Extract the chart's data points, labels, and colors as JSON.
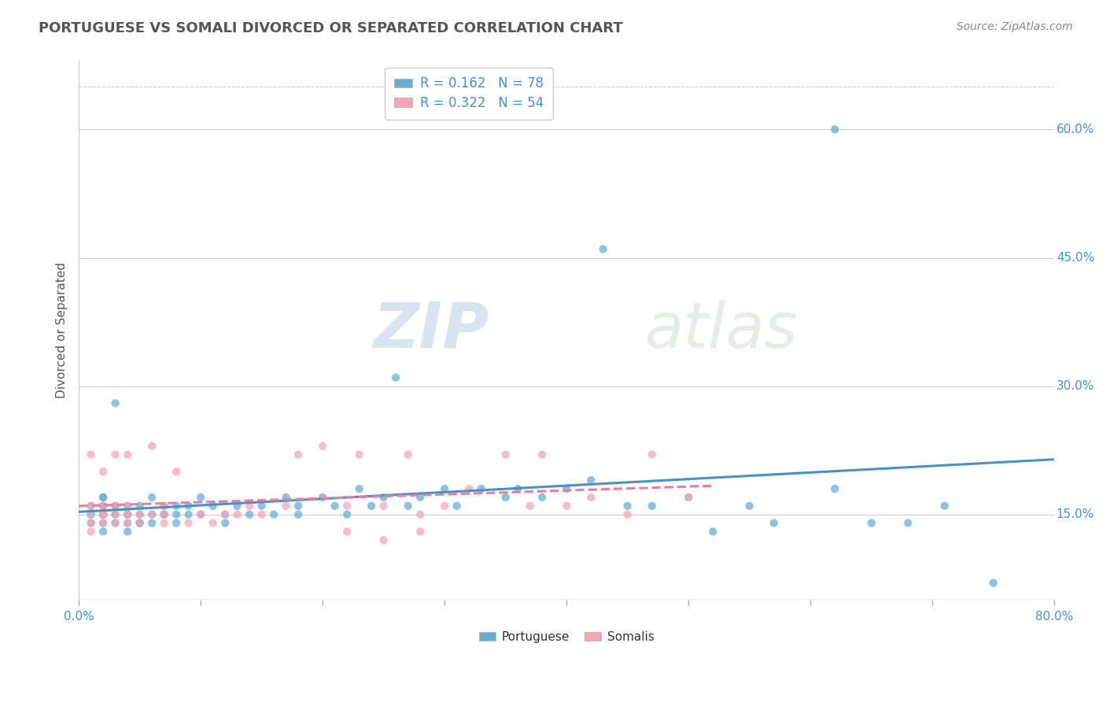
{
  "title": "PORTUGUESE VS SOMALI DIVORCED OR SEPARATED CORRELATION CHART",
  "source": "Source: ZipAtlas.com",
  "ylabel": "Divorced or Separated",
  "xlim": [
    0.0,
    0.8
  ],
  "ylim": [
    0.05,
    0.68
  ],
  "y_tick_vals": [
    0.15,
    0.3,
    0.45,
    0.6
  ],
  "y_tick_labels": [
    "15.0%",
    "30.0%",
    "45.0%",
    "60.0%"
  ],
  "watermark_zip": "ZIP",
  "watermark_atlas": "atlas",
  "legend_r1": "R = 0.162   N = 78",
  "legend_r2": "R = 0.322   N = 54",
  "blue_color": "#6aaed6",
  "pink_color": "#f4a6b8",
  "blue_line_color": "#4a90c4",
  "pink_line_color": "#e87fa0",
  "background_color": "#ffffff",
  "grid_color": "#cccccc",
  "portuguese_x": [
    0.01,
    0.01,
    0.01,
    0.02,
    0.02,
    0.02,
    0.02,
    0.02,
    0.02,
    0.02,
    0.02,
    0.02,
    0.03,
    0.03,
    0.03,
    0.03,
    0.03,
    0.04,
    0.04,
    0.04,
    0.04,
    0.04,
    0.05,
    0.05,
    0.05,
    0.05,
    0.06,
    0.06,
    0.06,
    0.07,
    0.07,
    0.07,
    0.08,
    0.08,
    0.08,
    0.09,
    0.09,
    0.1,
    0.1,
    0.11,
    0.12,
    0.12,
    0.13,
    0.14,
    0.15,
    0.16,
    0.17,
    0.18,
    0.18,
    0.2,
    0.21,
    0.22,
    0.23,
    0.24,
    0.25,
    0.26,
    0.27,
    0.28,
    0.3,
    0.31,
    0.33,
    0.35,
    0.36,
    0.38,
    0.4,
    0.42,
    0.43,
    0.45,
    0.47,
    0.5,
    0.52,
    0.55,
    0.57,
    0.62,
    0.65,
    0.68,
    0.71,
    0.75
  ],
  "portuguese_y": [
    0.15,
    0.16,
    0.14,
    0.15,
    0.17,
    0.16,
    0.14,
    0.15,
    0.16,
    0.13,
    0.17,
    0.15,
    0.15,
    0.16,
    0.14,
    0.28,
    0.16,
    0.15,
    0.14,
    0.16,
    0.15,
    0.13,
    0.14,
    0.15,
    0.16,
    0.14,
    0.17,
    0.15,
    0.14,
    0.15,
    0.16,
    0.15,
    0.16,
    0.14,
    0.15,
    0.16,
    0.15,
    0.17,
    0.15,
    0.16,
    0.15,
    0.14,
    0.16,
    0.15,
    0.16,
    0.15,
    0.17,
    0.16,
    0.15,
    0.17,
    0.16,
    0.15,
    0.18,
    0.16,
    0.17,
    0.31,
    0.16,
    0.17,
    0.18,
    0.16,
    0.18,
    0.17,
    0.18,
    0.17,
    0.18,
    0.19,
    0.46,
    0.16,
    0.16,
    0.17,
    0.13,
    0.16,
    0.14,
    0.18,
    0.14,
    0.14,
    0.16,
    0.07
  ],
  "somali_x": [
    0.01,
    0.01,
    0.01,
    0.01,
    0.01,
    0.02,
    0.02,
    0.02,
    0.02,
    0.02,
    0.03,
    0.03,
    0.03,
    0.03,
    0.04,
    0.04,
    0.04,
    0.04,
    0.05,
    0.05,
    0.06,
    0.06,
    0.07,
    0.07,
    0.07,
    0.08,
    0.09,
    0.1,
    0.11,
    0.12,
    0.13,
    0.14,
    0.15,
    0.17,
    0.18,
    0.2,
    0.22,
    0.23,
    0.25,
    0.27,
    0.28,
    0.3,
    0.32,
    0.35,
    0.37,
    0.38,
    0.4,
    0.42,
    0.45,
    0.47,
    0.5,
    0.22,
    0.25,
    0.28
  ],
  "somali_y": [
    0.15,
    0.14,
    0.16,
    0.13,
    0.22,
    0.15,
    0.16,
    0.14,
    0.2,
    0.15,
    0.14,
    0.16,
    0.15,
    0.22,
    0.14,
    0.16,
    0.22,
    0.15,
    0.14,
    0.15,
    0.15,
    0.23,
    0.14,
    0.16,
    0.15,
    0.2,
    0.14,
    0.15,
    0.14,
    0.15,
    0.15,
    0.16,
    0.15,
    0.16,
    0.22,
    0.23,
    0.16,
    0.22,
    0.16,
    0.22,
    0.15,
    0.16,
    0.18,
    0.22,
    0.16,
    0.22,
    0.16,
    0.17,
    0.15,
    0.22,
    0.17,
    0.13,
    0.12,
    0.13
  ],
  "port_outlier_x": [
    0.62
  ],
  "port_outlier_y": [
    0.6
  ]
}
